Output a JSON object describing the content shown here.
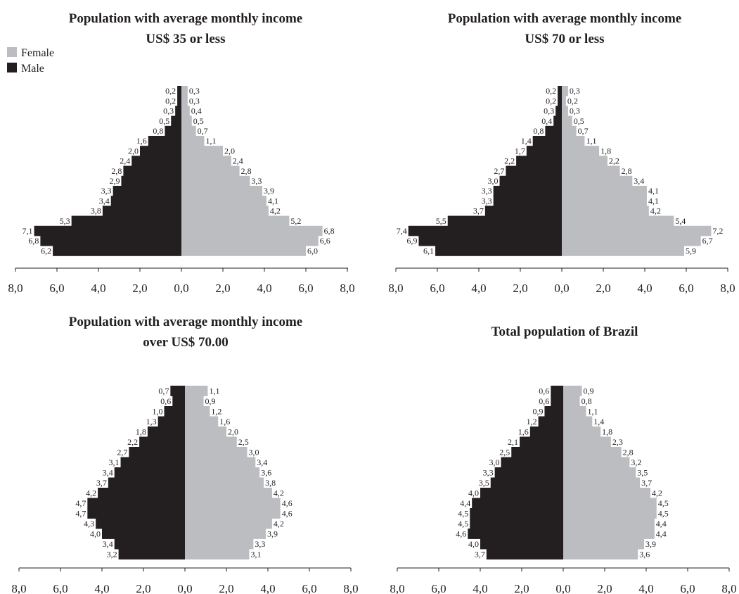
{
  "legend": {
    "female": "Female",
    "male": "Male"
  },
  "colors": {
    "female": "#bcbdc0",
    "male": "#231f20",
    "axis": "#231f20",
    "label_bg": "#ffffff"
  },
  "chart_data": [
    {
      "type": "bar",
      "subtype": "population-pyramid",
      "title": "Population with average monthly income",
      "subtitle": "US$ 35 or less",
      "xlim": [
        -8,
        8
      ],
      "xticks": [
        "8,0",
        "6,0",
        "4,0",
        "2,0",
        "0,0",
        "2,0",
        "4,0",
        "6,0",
        "8,0"
      ],
      "legend_position": "top-left",
      "series": [
        {
          "name": "Male",
          "values": [
            0.2,
            0.2,
            0.3,
            0.5,
            0.8,
            1.6,
            2.0,
            2.4,
            2.8,
            2.9,
            3.3,
            3.4,
            3.8,
            5.3,
            7.1,
            6.8,
            6.2
          ],
          "labels": [
            "0,2",
            "0,2",
            "0,3",
            "0,5",
            "0,8",
            "1,6",
            "2,0",
            "2,4",
            "2,8",
            "2,9",
            "3,3",
            "3,4",
            "3,8",
            "5,3",
            "7,1",
            "6,8",
            "6,2"
          ]
        },
        {
          "name": "Female",
          "values": [
            0.3,
            0.3,
            0.4,
            0.5,
            0.7,
            1.1,
            2.0,
            2.4,
            2.8,
            3.3,
            3.9,
            4.1,
            4.2,
            5.2,
            6.8,
            6.6,
            6.0
          ],
          "labels": [
            "0,3",
            "0,3",
            "0,4",
            "0,5",
            "0,7",
            "1,1",
            "2,0",
            "2,4",
            "2,8",
            "3,3",
            "3,9",
            "4,1",
            "4,2",
            "5,2",
            "6,8",
            "6,6",
            "6,0"
          ]
        }
      ]
    },
    {
      "type": "bar",
      "subtype": "population-pyramid",
      "title": "Population with average monthly income",
      "subtitle": "US$ 70 or less",
      "xlim": [
        -8,
        8
      ],
      "xticks": [
        "8,0",
        "6,0",
        "4,0",
        "2,0",
        "0,0",
        "2,0",
        "4,0",
        "6,0",
        "8,0"
      ],
      "series": [
        {
          "name": "Male",
          "values": [
            0.2,
            0.2,
            0.3,
            0.4,
            0.8,
            1.4,
            1.7,
            2.2,
            2.7,
            3.0,
            3.3,
            3.3,
            3.7,
            5.5,
            7.4,
            6.9,
            6.1
          ],
          "labels": [
            "0,2",
            "0,2",
            "0,3",
            "0,4",
            "0,8",
            "1,4",
            "1,7",
            "2,2",
            "2,7",
            "3,0",
            "3,3",
            "3,3",
            "3,7",
            "5,5",
            "7,4",
            "6,9",
            "6,1"
          ]
        },
        {
          "name": "Female",
          "values": [
            0.3,
            0.2,
            0.3,
            0.5,
            0.7,
            1.1,
            1.8,
            2.2,
            2.8,
            3.4,
            4.1,
            4.1,
            4.2,
            5.4,
            7.2,
            6.7,
            5.9
          ],
          "labels": [
            "0,3",
            "0,2",
            "0,3",
            "0,5",
            "0,7",
            "1,1",
            "1,8",
            "2,2",
            "2,8",
            "3,4",
            "4,1",
            "4,1",
            "4,2",
            "5,4",
            "7,2",
            "6,7",
            "5,9"
          ]
        }
      ]
    },
    {
      "type": "bar",
      "subtype": "population-pyramid",
      "title": "Population with average monthly income",
      "subtitle": "over US$ 70.00",
      "xlim": [
        -8,
        8
      ],
      "xticks": [
        "8,0",
        "6,0",
        "4,0",
        "2,0",
        "0,0",
        "2,0",
        "4,0",
        "6,0",
        "8,0"
      ],
      "series": [
        {
          "name": "Male",
          "values": [
            0.7,
            0.6,
            1.0,
            1.3,
            1.8,
            2.2,
            2.7,
            3.1,
            3.4,
            3.7,
            4.2,
            4.7,
            4.7,
            4.3,
            4.0,
            3.4,
            3.2
          ],
          "labels": [
            "0,7",
            "0,6",
            "1,0",
            "1,3",
            "1,8",
            "2,2",
            "2,7",
            "3,1",
            "3,4",
            "3,7",
            "4,2",
            "4,7",
            "4,7",
            "4,3",
            "4,0",
            "3,4",
            "3,2"
          ]
        },
        {
          "name": "Female",
          "values": [
            1.1,
            0.9,
            1.2,
            1.6,
            2.0,
            2.5,
            3.0,
            3.4,
            3.6,
            3.8,
            4.2,
            4.6,
            4.6,
            4.2,
            3.9,
            3.3,
            3.1
          ],
          "labels": [
            "1,1",
            "0,9",
            "1,2",
            "1,6",
            "2,0",
            "2,5",
            "3,0",
            "3,4",
            "3,6",
            "3,8",
            "4,2",
            "4,6",
            "4,6",
            "4,2",
            "3,9",
            "3,3",
            "3,1"
          ]
        }
      ]
    },
    {
      "type": "bar",
      "subtype": "population-pyramid",
      "title": "Total population of Brazil",
      "subtitle": "",
      "xlim": [
        -8,
        8
      ],
      "xticks": [
        "8,0",
        "6,0",
        "4,0",
        "2,0",
        "0,0",
        "2,0",
        "4,0",
        "6,0",
        "8,0"
      ],
      "series": [
        {
          "name": "Male",
          "values": [
            0.6,
            0.6,
            0.9,
            1.2,
            1.6,
            2.1,
            2.5,
            3.0,
            3.3,
            3.5,
            4.0,
            4.4,
            4.5,
            4.5,
            4.6,
            4.0,
            3.7
          ],
          "labels": [
            "0,6",
            "0,6",
            "0,9",
            "1,2",
            "1,6",
            "2,1",
            "2,5",
            "3,0",
            "3,3",
            "3,5",
            "4,0",
            "4,4",
            "4,5",
            "4,5",
            "4,6",
            "4,0",
            "3,7"
          ]
        },
        {
          "name": "Female",
          "values": [
            0.9,
            0.8,
            1.1,
            1.4,
            1.8,
            2.3,
            2.8,
            3.2,
            3.5,
            3.7,
            4.2,
            4.5,
            4.5,
            4.4,
            4.4,
            3.9,
            3.6
          ],
          "labels": [
            "0,9",
            "0,8",
            "1,1",
            "1,4",
            "1,8",
            "2,3",
            "2,8",
            "3,2",
            "3,5",
            "3,7",
            "4,2",
            "4,5",
            "4,5",
            "4,4",
            "4,4",
            "3,9",
            "3,6"
          ]
        }
      ]
    }
  ]
}
